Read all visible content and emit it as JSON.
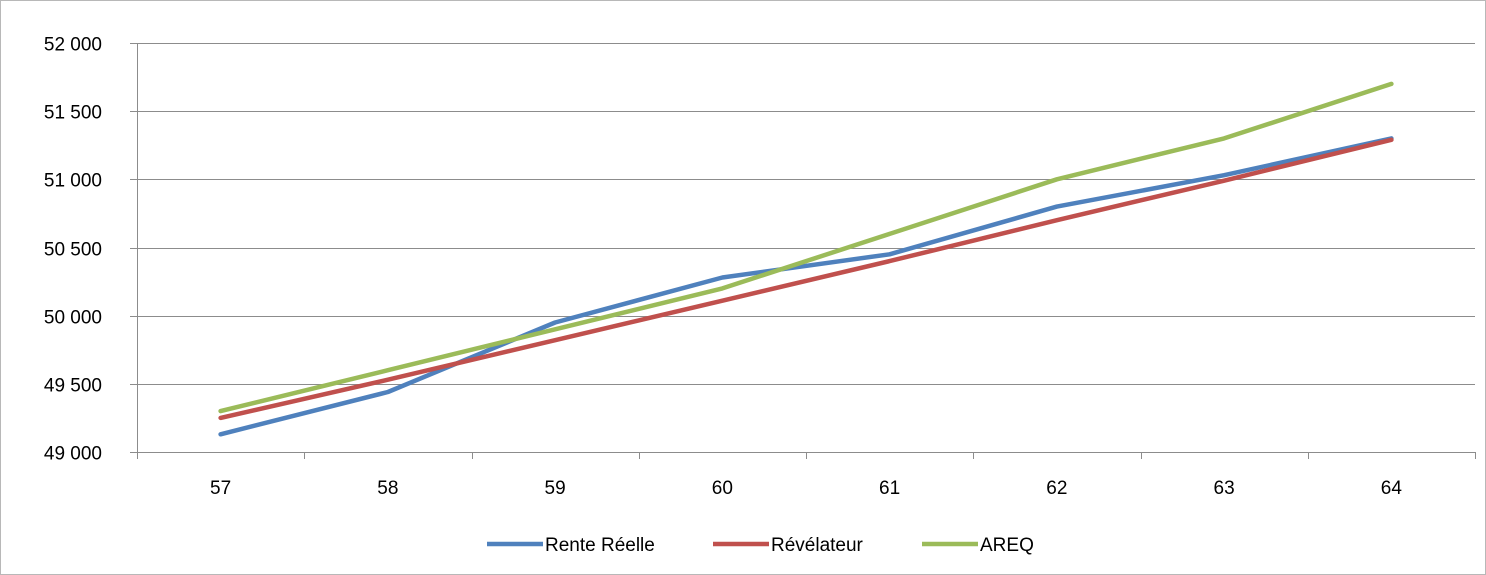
{
  "chart_data": {
    "type": "line",
    "x": [
      57,
      58,
      59,
      60,
      61,
      62,
      63,
      64
    ],
    "series": [
      {
        "name": "Rente Réelle",
        "color": "#4f81bd",
        "values": [
          49130,
          49440,
          49950,
          50280,
          50450,
          50800,
          51030,
          51300
        ]
      },
      {
        "name": "Révélateur",
        "color": "#c0504d",
        "values": [
          49250,
          49530,
          49820,
          50110,
          50400,
          50700,
          50990,
          51290
        ]
      },
      {
        "name": "AREQ",
        "color": "#9bbb59",
        "values": [
          49300,
          49600,
          49900,
          50200,
          50600,
          51000,
          51300,
          51700
        ]
      }
    ],
    "ylim": [
      49000,
      52000
    ],
    "yticks": [
      49000,
      49500,
      50000,
      50500,
      51000,
      51500,
      52000
    ],
    "ytick_labels": [
      "49 000",
      "49 500",
      "50 000",
      "50 500",
      "51 000",
      "51 500",
      "52 000"
    ],
    "xtick_labels": [
      "57",
      "58",
      "59",
      "60",
      "61",
      "62",
      "63",
      "64"
    ],
    "title": "",
    "xlabel": "",
    "ylabel": "",
    "grid": "horizontal",
    "legend_position": "bottom"
  }
}
